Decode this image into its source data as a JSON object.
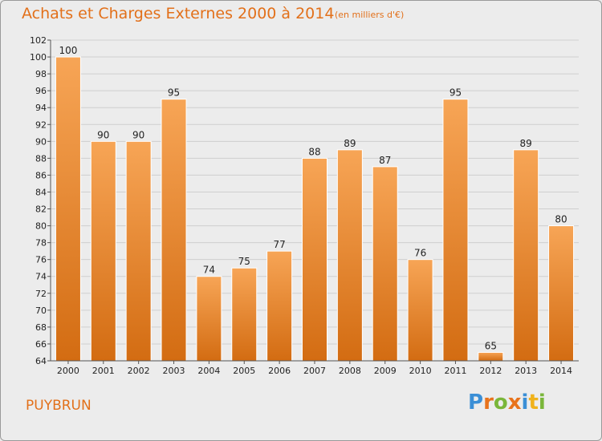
{
  "header": {
    "title": "Achats et Charges Externes 2000 à 2014",
    "unit": "(en milliers d'€)"
  },
  "footer": {
    "place": "PUYBRUN",
    "logo_letters": [
      {
        "char": "P",
        "color": "#3b8fd6"
      },
      {
        "char": "r",
        "color": "#e8731c"
      },
      {
        "char": "o",
        "color": "#7ab63a"
      },
      {
        "char": "x",
        "color": "#e8731c"
      },
      {
        "char": "i",
        "color": "#3b8fd6"
      },
      {
        "char": "t",
        "color": "#f0b21c"
      },
      {
        "char": "i",
        "color": "#7ab63a"
      }
    ]
  },
  "colors": {
    "bar_top": "#f7a556",
    "bar_bottom": "#d36c12",
    "grid": "#cfcfcf",
    "axis": "#555555",
    "text": "#222222",
    "accent": "#e2701a"
  },
  "chart_data": {
    "type": "bar",
    "title": "Achats et Charges Externes 2000 à 2014",
    "subtitle": "(en milliers d'€)",
    "xlabel": "",
    "ylabel": "",
    "categories": [
      "2000",
      "2001",
      "2002",
      "2003",
      "2004",
      "2005",
      "2006",
      "2007",
      "2008",
      "2009",
      "2010",
      "2011",
      "2012",
      "2013",
      "2014"
    ],
    "values": [
      100,
      90,
      90,
      95,
      74,
      75,
      77,
      88,
      89,
      87,
      76,
      95,
      65,
      89,
      80
    ],
    "ylim": [
      64,
      102
    ],
    "yticks": [
      64,
      66,
      68,
      70,
      72,
      74,
      76,
      78,
      80,
      82,
      84,
      86,
      88,
      90,
      92,
      94,
      96,
      98,
      100,
      102
    ],
    "grid": true,
    "data_labels": true
  }
}
